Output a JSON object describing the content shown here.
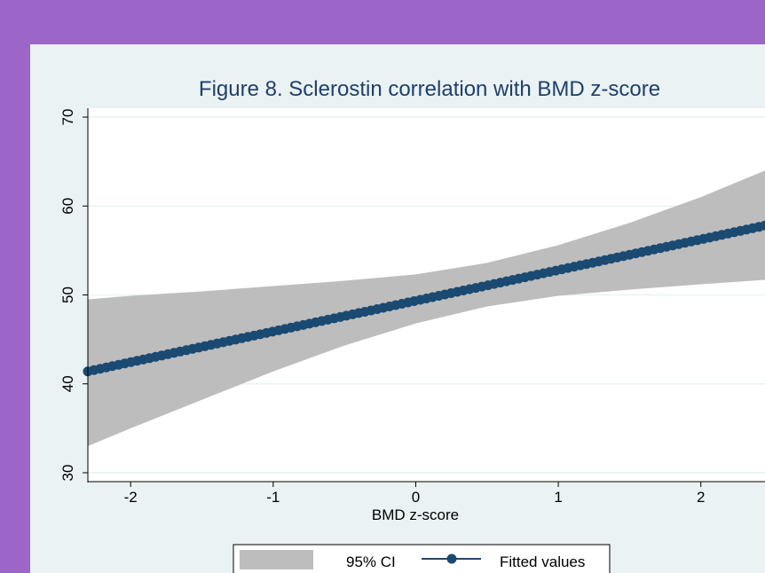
{
  "chart_data": {
    "type": "line",
    "title": "Figure 8. Sclerostin correlation with BMD z-score",
    "xlabel": "BMD z-score",
    "ylabel": "",
    "xlim": [
      -2.3,
      2.45
    ],
    "ylim": [
      29,
      71
    ],
    "x_ticks": [
      -2,
      -1,
      0,
      1,
      2
    ],
    "y_ticks": [
      30,
      40,
      50,
      60,
      70
    ],
    "grid": true,
    "legend_position": "bottom",
    "series": [
      {
        "name": "Fitted values",
        "kind": "line",
        "color": "#1a4a72",
        "x": [
          -2.3,
          2.45
        ],
        "y": [
          41.4,
          57.8
        ]
      },
      {
        "name": "95% CI",
        "kind": "band",
        "color": "#bdbdbd",
        "x": [
          -2.3,
          -2.0,
          -1.5,
          -1.0,
          -0.5,
          0.0,
          0.5,
          1.0,
          1.5,
          2.0,
          2.45
        ],
        "lower": [
          33.0,
          35.0,
          38.2,
          41.4,
          44.3,
          46.8,
          48.7,
          49.9,
          50.6,
          51.2,
          51.7
        ],
        "upper": [
          49.5,
          49.9,
          50.4,
          51.0,
          51.6,
          52.3,
          53.6,
          55.6,
          58.1,
          61.0,
          64.0
        ]
      }
    ]
  },
  "colors": {
    "frame": "#9c66c8",
    "panel": "#eaf2f3",
    "plot_bg": "#ffffff",
    "grid": "#eaf2f3",
    "title": "#1f3f6b",
    "band": "#bdbdbd",
    "line": "#1a4a72"
  }
}
